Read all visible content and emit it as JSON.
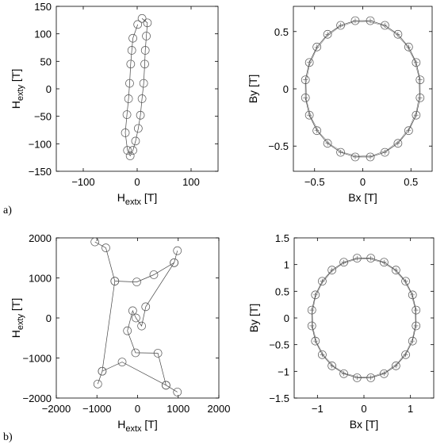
{
  "panel_labels": [
    "a)",
    "b)"
  ],
  "chart_data": [
    {
      "type": "scatter",
      "xlabel": "H_extx [T]",
      "ylabel": "H_exty [T]",
      "xlim": [
        -150,
        150
      ],
      "ylim": [
        -150,
        150
      ],
      "xticks": [
        -100,
        0,
        100
      ],
      "yticks": [
        -150,
        -100,
        -50,
        0,
        50,
        100,
        150
      ],
      "series": [
        {
          "values": [
            {
              "x": 9,
              "y": 128
            },
            {
              "x": 19,
              "y": 120
            },
            {
              "x": 17,
              "y": 96
            },
            {
              "x": 15,
              "y": 70
            },
            {
              "x": 14,
              "y": 45
            },
            {
              "x": 12,
              "y": 10
            },
            {
              "x": 9,
              "y": -18
            },
            {
              "x": 6,
              "y": -48
            },
            {
              "x": 2,
              "y": -72
            },
            {
              "x": -3,
              "y": -95
            },
            {
              "x": -8,
              "y": -112
            },
            {
              "x": -13,
              "y": -122
            },
            {
              "x": -18,
              "y": -112
            },
            {
              "x": -22,
              "y": -80
            },
            {
              "x": -19,
              "y": -47
            },
            {
              "x": -16,
              "y": -18
            },
            {
              "x": -14,
              "y": 10
            },
            {
              "x": -12,
              "y": 45
            },
            {
              "x": -10,
              "y": 70
            },
            {
              "x": -8,
              "y": 92
            },
            {
              "x": 1,
              "y": 117
            }
          ]
        }
      ]
    },
    {
      "type": "scatter",
      "xlabel": "Bx [T]",
      "ylabel": "By [T]",
      "xlim": [
        -0.72,
        0.72
      ],
      "ylim": [
        -0.72,
        0.72
      ],
      "xticks": [
        -0.5,
        0,
        0.5
      ],
      "yticks": [
        -0.5,
        0,
        0.5
      ],
      "series": [
        {
          "radius": 0.6,
          "count": 24,
          "offset_deg": 7.5
        }
      ]
    },
    {
      "type": "scatter",
      "xlabel": "H_extx [T]",
      "ylabel": "H_exty [T]",
      "xlim": [
        -2000,
        2000
      ],
      "ylim": [
        -2000,
        2000
      ],
      "xticks": [
        -2000,
        -1000,
        0,
        1000,
        2000
      ],
      "yticks": [
        -2000,
        -1000,
        0,
        1000,
        2000
      ],
      "series": [
        {
          "values": [
            {
              "x": -1050,
              "y": 1900
            },
            {
              "x": -780,
              "y": 1750
            },
            {
              "x": -560,
              "y": 920
            },
            {
              "x": -20,
              "y": 900
            },
            {
              "x": 400,
              "y": 1080
            },
            {
              "x": 900,
              "y": 1380
            },
            {
              "x": 980,
              "y": 1680
            },
            {
              "x": 900,
              "y": 1380
            },
            {
              "x": 200,
              "y": 280
            },
            {
              "x": 100,
              "y": -200
            },
            {
              "x": -40,
              "y": 0
            },
            {
              "x": -120,
              "y": 180
            },
            {
              "x": -250,
              "y": -320
            },
            {
              "x": -50,
              "y": -870
            },
            {
              "x": 500,
              "y": -880
            },
            {
              "x": 700,
              "y": -1680
            },
            {
              "x": 980,
              "y": -1850
            },
            {
              "x": 700,
              "y": -1680
            },
            {
              "x": -380,
              "y": -1100
            },
            {
              "x": -870,
              "y": -1330
            },
            {
              "x": -980,
              "y": -1650
            },
            {
              "x": -870,
              "y": -1330
            },
            {
              "x": -560,
              "y": 920
            }
          ]
        }
      ]
    },
    {
      "type": "scatter",
      "xlabel": "Bx [T]",
      "ylabel": "By [T]",
      "xlim": [
        -1.5,
        1.5
      ],
      "ylim": [
        -1.5,
        1.5
      ],
      "xticks": [
        -1,
        0,
        1
      ],
      "yticks": [
        -1.5,
        -1,
        -0.5,
        0,
        0.5,
        1,
        1.5
      ],
      "series": [
        {
          "radius": 1.13,
          "count": 24,
          "offset_deg": 7.5
        }
      ]
    }
  ]
}
